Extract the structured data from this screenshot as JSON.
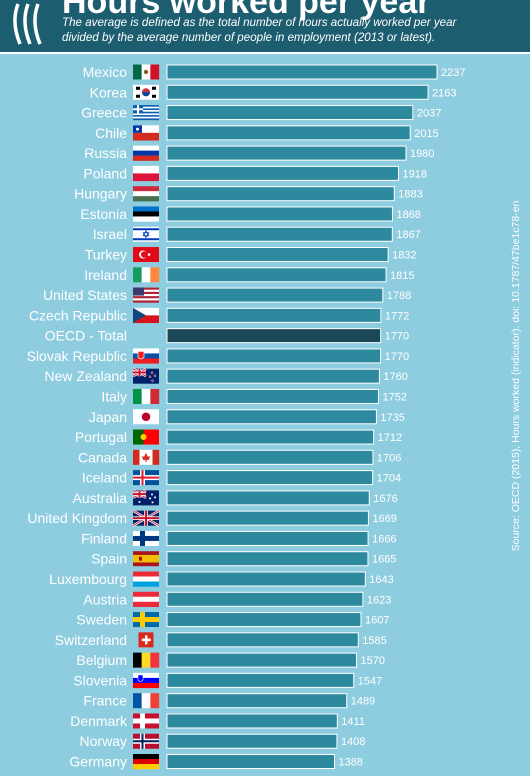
{
  "header": {
    "title": "Hours worked per year",
    "subtitle": "The average is defined as the total number of hours actually worked per year divided by the average number of people in employment (2013 or latest).",
    "source": "Source: OECD (2015), Hours worked (indicator). doi: 10.1787/47be1c78-en"
  },
  "colors": {
    "background": "#8ecddf",
    "header": "#1d5d70",
    "bar": "#2d8a9e",
    "highlight_bar": "#1a4856"
  },
  "chart_data": {
    "type": "bar",
    "orientation": "horizontal",
    "title": "Hours worked per year",
    "xlim": [
      0,
      2300
    ],
    "categories": [
      "Mexico",
      "Korea",
      "Greece",
      "Chile",
      "Russia",
      "Poland",
      "Hungary",
      "Estonia",
      "Israel",
      "Turkey",
      "Ireland",
      "United States",
      "Czech Republic",
      "OECD - Total",
      "Slovak Republic",
      "New Zealand",
      "Italy",
      "Japan",
      "Portugal",
      "Canada",
      "Iceland",
      "Australia",
      "United Kingdom",
      "Finland",
      "Spain",
      "Luxembourg",
      "Austria",
      "Sweden",
      "Switzerland",
      "Belgium",
      "Slovenia",
      "France",
      "Denmark",
      "Norway",
      "Germany"
    ],
    "values": [
      2237,
      2163,
      2037,
      2015,
      1980,
      1918,
      1883,
      1868,
      1867,
      1832,
      1815,
      1788,
      1772,
      1770,
      1770,
      1760,
      1752,
      1735,
      1712,
      1706,
      1704,
      1676,
      1669,
      1666,
      1665,
      1643,
      1623,
      1607,
      1585,
      1570,
      1547,
      1489,
      1411,
      1408,
      1388
    ],
    "value_labels": [
      "2237",
      "2163",
      "2037",
      "2015",
      "1980",
      "1918",
      "1883",
      "1868",
      "1867",
      "1832",
      "1815",
      "1788",
      "1772",
      "1770",
      "1770",
      "1760",
      "1752",
      "1735",
      "1712",
      "1706",
      "1704",
      "1676",
      "1669",
      "1666",
      "1665",
      "1643",
      "1623",
      "1607",
      "1585",
      "1570",
      "1547",
      "1489",
      "1411",
      "1408",
      "1388"
    ],
    "flags": [
      "mexico-flag",
      "korea-flag",
      "greece-flag",
      "chile-flag",
      "russia-flag",
      "poland-flag",
      "hungary-flag",
      "estonia-flag",
      "israel-flag",
      "turkey-flag",
      "ireland-flag",
      "usa-flag",
      "czech-flag",
      "",
      "slovakia-flag",
      "newzealand-flag",
      "italy-flag",
      "japan-flag",
      "portugal-flag",
      "canada-flag",
      "iceland-flag",
      "australia-flag",
      "uk-flag",
      "finland-flag",
      "spain-flag",
      "luxembourg-flag",
      "austria-flag",
      "sweden-flag",
      "switzerland-flag",
      "belgium-flag",
      "slovenia-flag",
      "france-flag",
      "denmark-flag",
      "norway-flag",
      "germany-flag"
    ],
    "highlight": "OECD - Total"
  }
}
